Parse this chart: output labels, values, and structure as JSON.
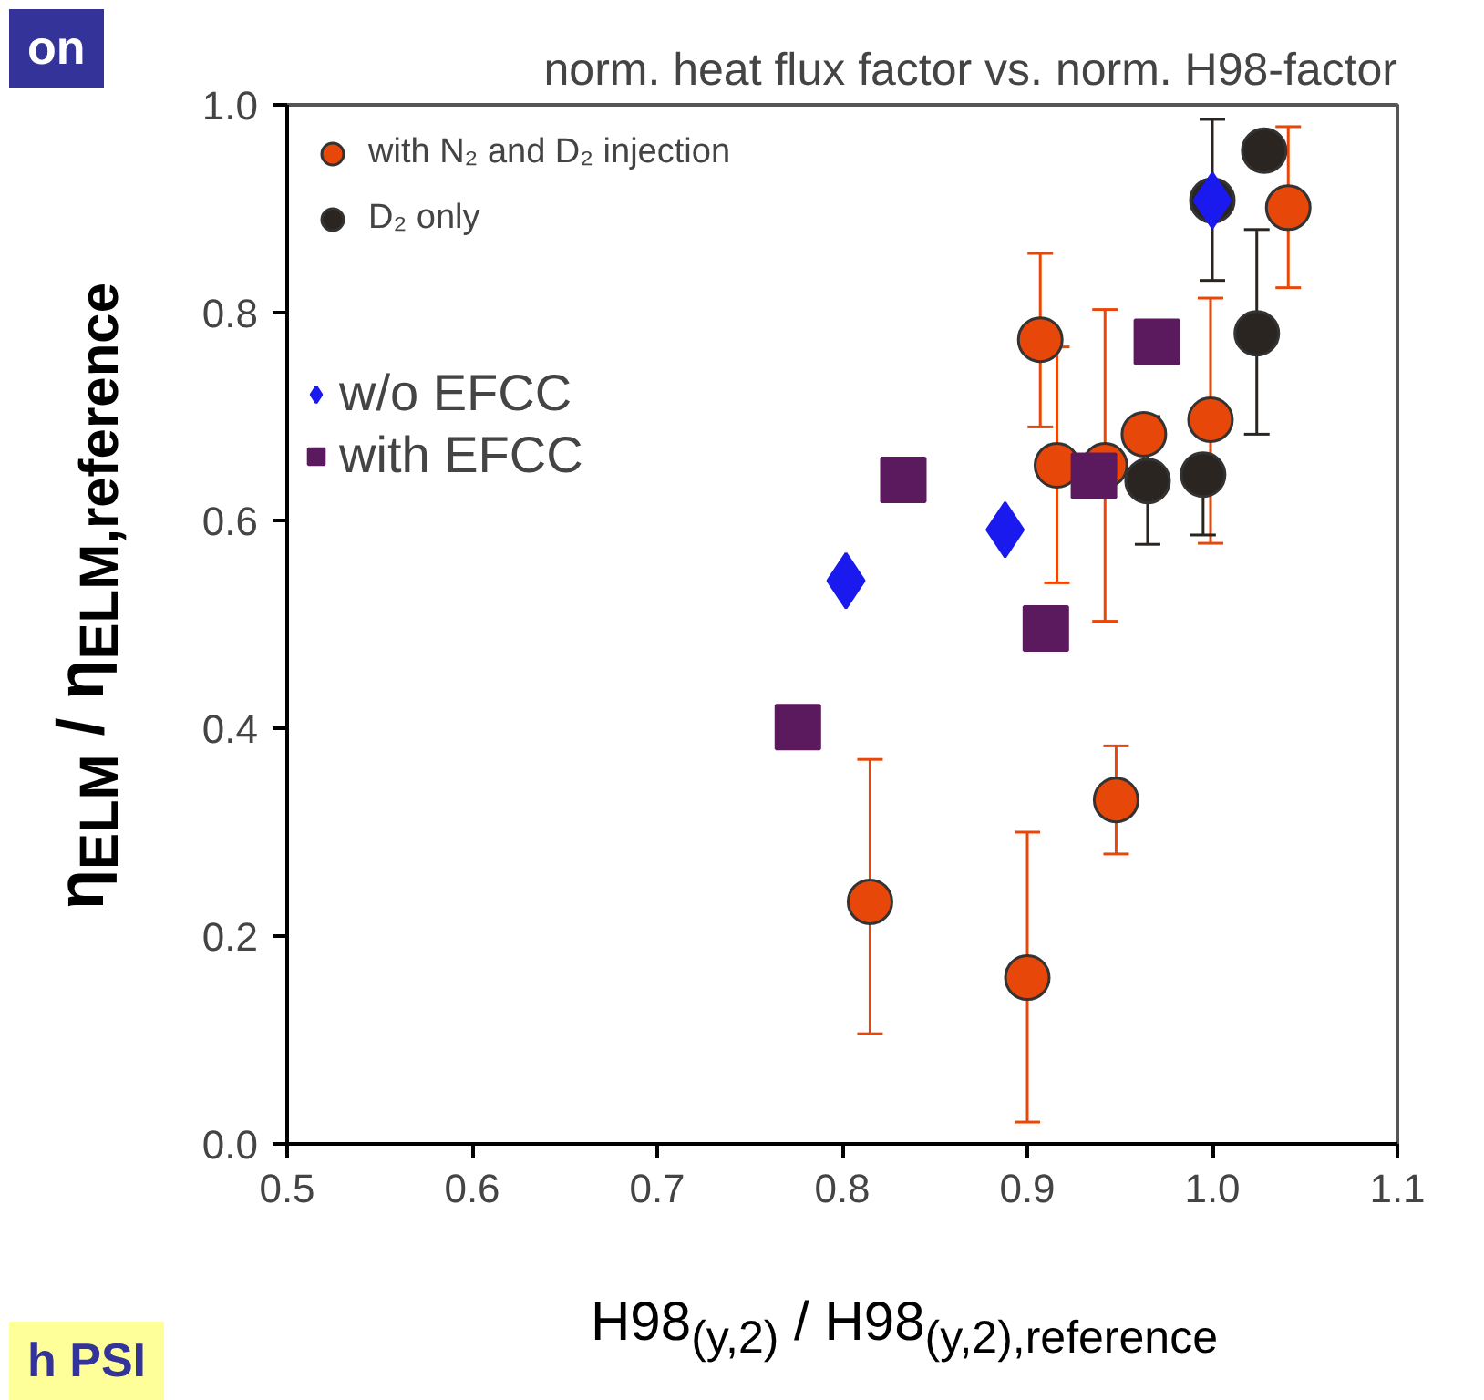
{
  "chart_data": {
    "type": "scatter",
    "title": "norm. heat flux factor vs. norm. H98-factor",
    "xlabel": "H98$_{(y,2)}$ / H98$_{(y,2),reference}$",
    "ylabel": "η$_{ELM}$ / η$_{ELM,reference}$",
    "xlim": [
      0.5,
      1.1
    ],
    "ylim": [
      0,
      1
    ],
    "xticks": [
      0.5,
      0.6,
      0.7,
      0.8,
      0.9,
      {
        "value": 1,
        "label": "1.0"
      },
      1.1
    ],
    "yticks": [
      {
        "value": 0,
        "label": "0.0"
      },
      0.2,
      0.4,
      0.6,
      0.8,
      {
        "value": 1,
        "label": "1.0"
      }
    ],
    "grid": false,
    "legend": "top left",
    "annotations": [
      "on",
      "h PSI"
    ],
    "series": [
      {
        "name": "with N₂ and D₂ injection",
        "color": "#e8470a",
        "marker": "circle",
        "x": [
          0.907,
          1.041,
          0.916,
          0.942,
          0.963,
          0.999,
          0.815,
          0.9,
          0.948
        ],
        "values": [
          0.774,
          0.901,
          0.653,
          0.653,
          0.683,
          0.697,
          0.233,
          0.16,
          0.331
        ],
        "errors": [
          [
            0.69,
            0.857
          ],
          [
            0.824,
            0.979
          ],
          [
            0.54,
            0.767
          ],
          [
            0.503,
            0.803
          ],
          null,
          [
            0.578,
            0.814
          ],
          [
            0.106,
            0.37
          ],
          [
            0.021,
            0.3
          ],
          [
            0.279,
            0.383
          ]
        ]
      },
      {
        "name": "D₂ only",
        "color": "#2a2521",
        "marker": "circle",
        "x": [
          1.0,
          1.028,
          1.024,
          0.965,
          0.995
        ],
        "values": [
          0.908,
          0.956,
          0.78,
          0.638,
          0.644
        ],
        "errors": [
          [
            0.831,
            0.986
          ],
          null,
          [
            0.683,
            0.88
          ],
          [
            0.577,
            0.7
          ],
          [
            0.586,
            0.644
          ]
        ]
      },
      {
        "name": "w/o EFCC",
        "color": "#1a1aee",
        "marker": "diamond",
        "x": [
          1.0,
          0.888,
          0.802
        ],
        "values": [
          0.908,
          0.591,
          0.542
        ]
      },
      {
        "name": "with EFCC",
        "color": "#5c1a5e",
        "marker": "square",
        "x": [
          0.97,
          0.833,
          0.936,
          0.91,
          0.776
        ],
        "values": [
          0.772,
          0.639,
          0.643,
          0.496,
          0.401
        ]
      }
    ]
  }
}
